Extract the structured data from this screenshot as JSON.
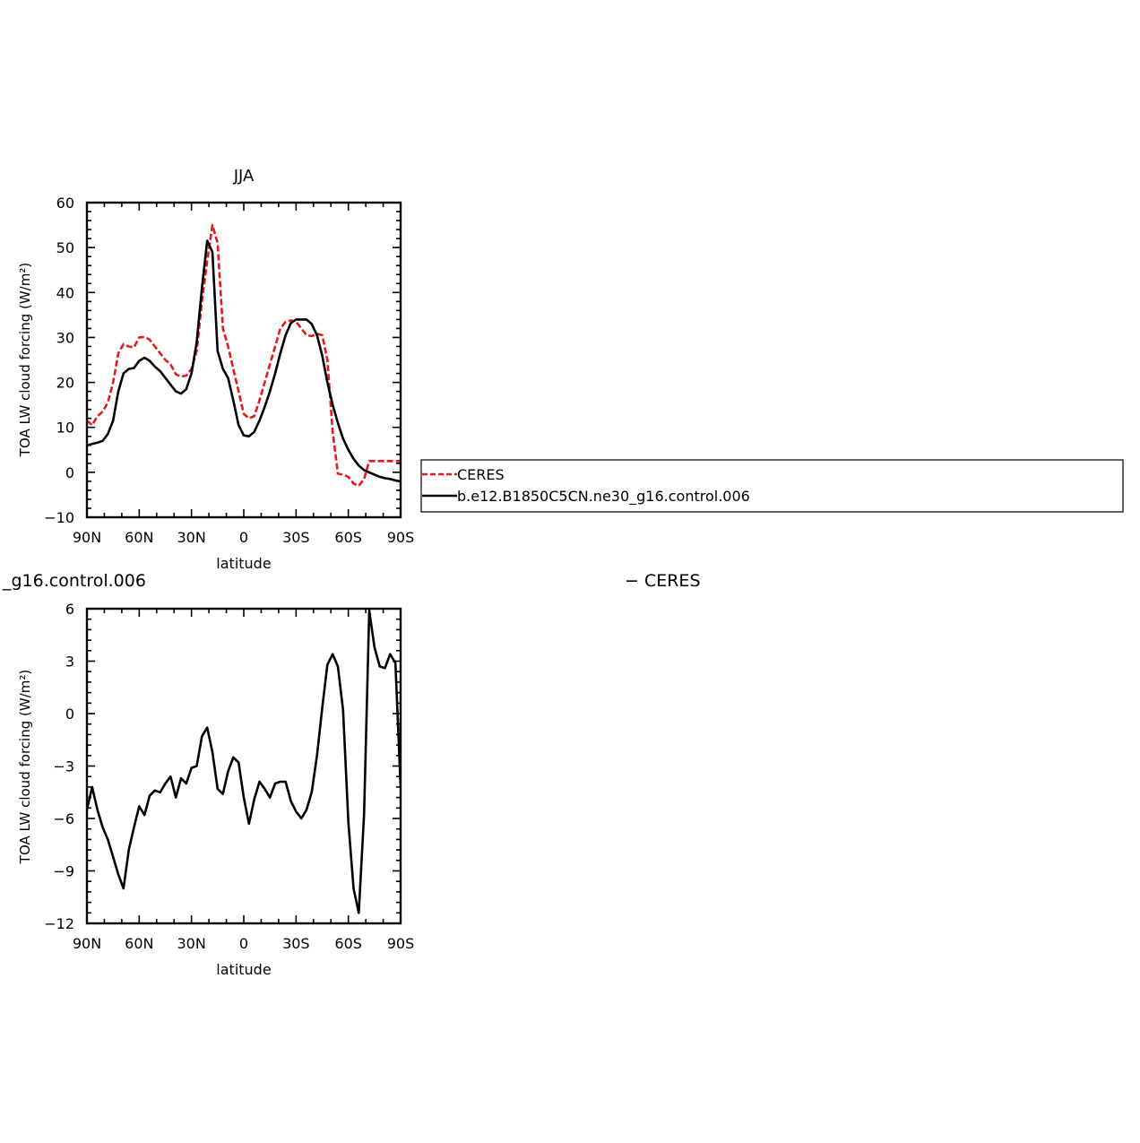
{
  "chart_data": [
    {
      "type": "line",
      "title": "JJA",
      "xlabel": "latitude",
      "ylabel": "TOA LW cloud forcing (W/m²)",
      "xlim": [
        90,
        -90
      ],
      "ylim": [
        -10,
        60
      ],
      "xticks": [
        90,
        60,
        30,
        0,
        -30,
        -60,
        -90
      ],
      "xtick_labels": [
        "90N",
        "60N",
        "30N",
        "0",
        "30S",
        "60S",
        "90S"
      ],
      "yticks": [
        -10,
        0,
        10,
        20,
        30,
        40,
        50,
        60
      ],
      "ytick_labels": [
        "−10",
        "0",
        "10",
        "20",
        "30",
        "40",
        "50",
        "60"
      ],
      "legend": {
        "placement": "right",
        "entries": [
          "CERES",
          "b.e12.B1850C5CN.ne30_g16.control.006"
        ]
      },
      "series": [
        {
          "name": "CERES",
          "color": "#e41a1c",
          "dash": "dashed",
          "x": [
            90,
            87,
            84,
            81,
            78,
            75,
            72,
            69,
            66,
            63,
            60,
            57,
            54,
            51,
            48,
            45,
            42,
            39,
            36,
            33,
            30,
            27,
            24,
            21,
            18,
            15,
            12,
            9,
            6,
            3,
            0,
            -3,
            -6,
            -9,
            -12,
            -15,
            -18,
            -21,
            -24,
            -27,
            -30,
            -33,
            -36,
            -39,
            -42,
            -45,
            -48,
            -51,
            -54,
            -57,
            -60,
            -63,
            -66,
            -69,
            -72,
            -75,
            -78,
            -81,
            -84,
            -87,
            -90
          ],
          "y": [
            11.5,
            10.5,
            12.5,
            13.5,
            15.5,
            20,
            26.5,
            28.5,
            28,
            27.8,
            30,
            30.1,
            29.5,
            28,
            26.5,
            25,
            24,
            21.8,
            21.3,
            21.5,
            23,
            27,
            38,
            47,
            55,
            51,
            32,
            28,
            23,
            18,
            13,
            12,
            12.5,
            16,
            20,
            24,
            28,
            32,
            33.5,
            33.8,
            33.5,
            32,
            30.5,
            30.3,
            30.8,
            30.5,
            25,
            9,
            -0.3,
            -0.5,
            -1,
            -2.5,
            -3,
            -1.5,
            2.5,
            2.5,
            2.5,
            2.5,
            2.5,
            2.5,
            2.5
          ]
        },
        {
          "name": "b.e12.B1850C5CN.ne30_g16.control.006",
          "color": "#000000",
          "dash": "solid",
          "x": [
            90,
            87,
            84,
            81,
            78,
            75,
            72,
            69,
            66,
            63,
            60,
            57,
            54,
            51,
            48,
            45,
            42,
            39,
            36,
            33,
            30,
            27,
            24,
            21,
            18,
            15,
            12,
            9,
            6,
            3,
            0,
            -3,
            -6,
            -9,
            -12,
            -15,
            -18,
            -21,
            -24,
            -27,
            -30,
            -33,
            -36,
            -39,
            -42,
            -45,
            -48,
            -51,
            -54,
            -57,
            -60,
            -63,
            -66,
            -69,
            -72,
            -75,
            -78,
            -81,
            -84,
            -87,
            -90
          ],
          "y": [
            6,
            6.3,
            6.6,
            7,
            8.5,
            11.5,
            18,
            22,
            23,
            23.2,
            24.8,
            25.5,
            24.8,
            23.5,
            22.5,
            21,
            19.5,
            18,
            17.5,
            18.5,
            22,
            29,
            41,
            51.5,
            49,
            27,
            23,
            21,
            16,
            10.5,
            8.2,
            8,
            9,
            11.5,
            14.5,
            18,
            22,
            26.5,
            30.5,
            33.2,
            34,
            34,
            34,
            33,
            30.5,
            26,
            20,
            15,
            11,
            7.5,
            5,
            3,
            1.5,
            0.5,
            0,
            -0.5,
            -1,
            -1.3,
            -1.5,
            -1.8,
            -2
          ]
        }
      ]
    },
    {
      "type": "line",
      "title_left": "_g16.control.006",
      "title_right": "−  CERES",
      "xlabel": "latitude",
      "ylabel": "TOA LW cloud forcing (W/m²)",
      "xlim": [
        90,
        -90
      ],
      "ylim": [
        -12,
        6
      ],
      "xticks": [
        90,
        60,
        30,
        0,
        -30,
        -60,
        -90
      ],
      "xtick_labels": [
        "90N",
        "60N",
        "30N",
        "0",
        "30S",
        "60S",
        "90S"
      ],
      "yticks": [
        -12,
        -9,
        -6,
        -3,
        0,
        3,
        6
      ],
      "ytick_labels": [
        "−12",
        "−9",
        "−6",
        "−3",
        "0",
        "3",
        "6"
      ],
      "series": [
        {
          "color": "#000000",
          "dash": "solid",
          "x": [
            90,
            87,
            84,
            81,
            78,
            75,
            72,
            69,
            66,
            63,
            60,
            57,
            54,
            51,
            48,
            45,
            42,
            39,
            36,
            33,
            30,
            27,
            24,
            21,
            18,
            15,
            12,
            9,
            6,
            3,
            0,
            -3,
            -6,
            -9,
            -12,
            -15,
            -18,
            -21,
            -24,
            -27,
            -30,
            -33,
            -36,
            -39,
            -42,
            -45,
            -48,
            -51,
            -54,
            -57,
            -60,
            -63,
            -66,
            -69,
            -72,
            -75,
            -78,
            -81,
            -84,
            -87,
            -90
          ],
          "y": [
            -5.5,
            -4.2,
            -5.5,
            -6.5,
            -7.2,
            -8.2,
            -9.2,
            -10,
            -7.8,
            -6.5,
            -5.3,
            -5.8,
            -4.7,
            -4.4,
            -4.5,
            -4,
            -3.6,
            -4.8,
            -3.7,
            -4,
            -3.1,
            -3,
            -1.3,
            -0.8,
            -2.2,
            -4.3,
            -4.6,
            -3.3,
            -2.5,
            -2.8,
            -4.8,
            -6.3,
            -4.9,
            -3.9,
            -4.3,
            -4.8,
            -4,
            -3.9,
            -3.9,
            -5,
            -5.6,
            -6,
            -5.5,
            -4.5,
            -2.4,
            0.3,
            2.8,
            3.4,
            2.7,
            0.2,
            -6.2,
            -10,
            -11.4,
            -5.8,
            5.9,
            3.8,
            2.7,
            2.6,
            3.4,
            2.9,
            -4.2
          ]
        }
      ]
    }
  ]
}
